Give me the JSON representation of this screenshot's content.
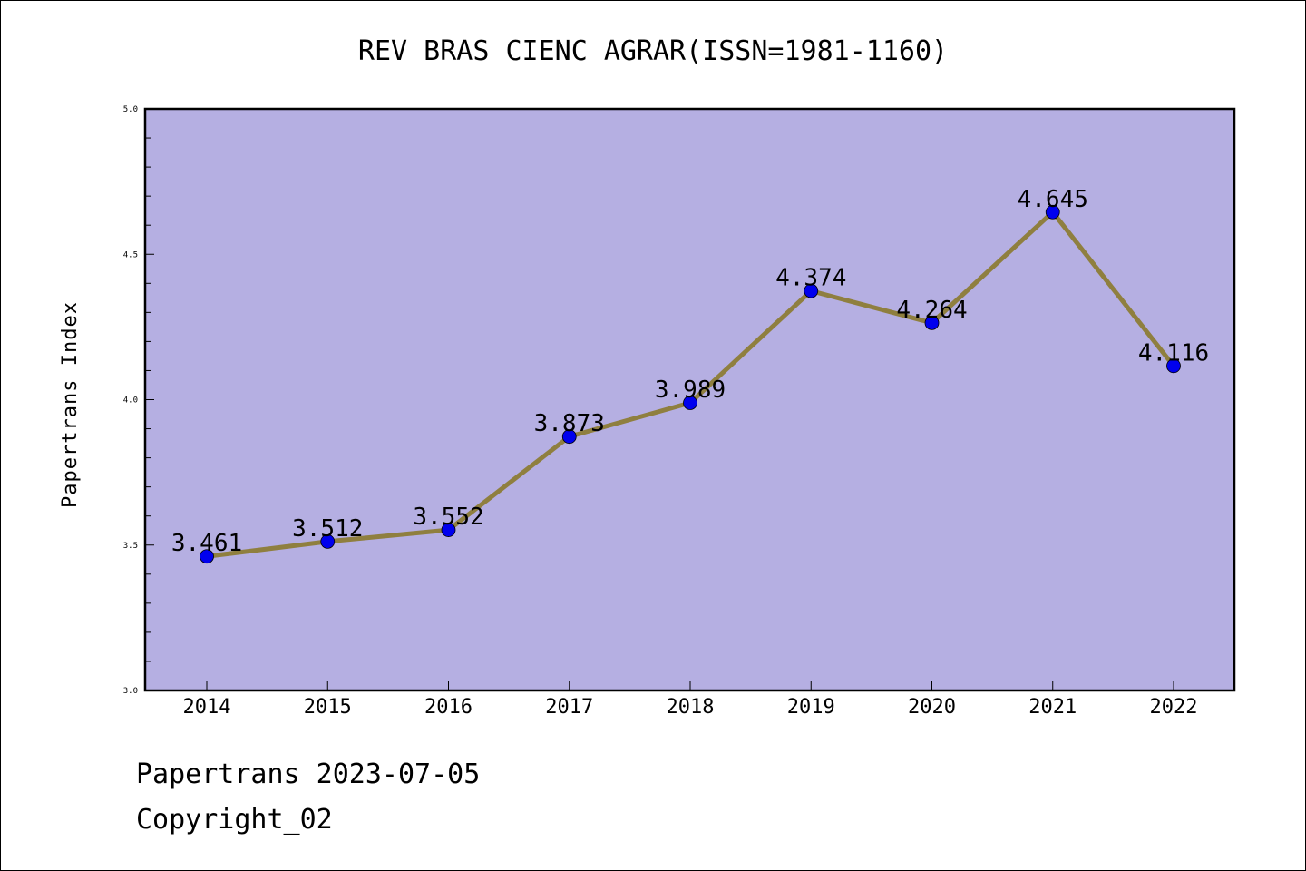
{
  "chart_data": {
    "type": "line",
    "title": "REV BRAS CIENC AGRAR(ISSN=1981-1160)",
    "xlabel": "",
    "ylabel": "Papertrans Index",
    "categories": [
      "2014",
      "2015",
      "2016",
      "2017",
      "2018",
      "2019",
      "2020",
      "2021",
      "2022"
    ],
    "values": [
      3.461,
      3.512,
      3.552,
      3.873,
      3.989,
      4.374,
      4.264,
      4.645,
      4.116
    ],
    "data_labels": [
      "3.461",
      "3.512",
      "3.552",
      "3.873",
      "3.989",
      "4.374",
      "4.264",
      "4.645",
      "4.116"
    ],
    "ylim": [
      3.0,
      5.0
    ],
    "yticks": [
      "3.0",
      "3.5",
      "4.0",
      "4.5",
      "5.0"
    ],
    "grid": false,
    "colors": {
      "plot_background": "#b5afe2",
      "line": "#8f7f3f",
      "marker": "#0000ee"
    }
  },
  "footer": {
    "line1": "Papertrans 2023-07-05",
    "line2": "Copyright_02"
  }
}
